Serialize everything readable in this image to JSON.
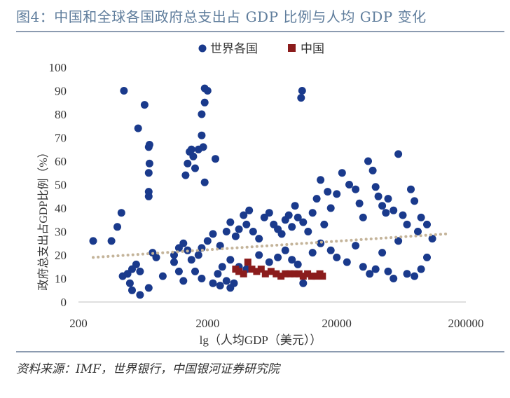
{
  "figure": {
    "title": "图4：中国和全球各国政府总支出占 GDP 比例与人均 GDP 变化",
    "source": "资料来源：IMF，世界银行，中国银河证券研究院"
  },
  "colors": {
    "world": "#1a3a8c",
    "china": "#8b1c1c",
    "trend": "#c4b49a",
    "axis": "#bfbfbf",
    "title": "#5f7d9c"
  },
  "chart_data": {
    "type": "scatter",
    "title": "",
    "xlabel": "lg（人均GDP（美元））",
    "ylabel": "政府总支出占GDP比例（%）",
    "x_scale": "log10",
    "xlim": [
      200,
      200000
    ],
    "ylim": [
      0,
      100
    ],
    "xticks": [
      200,
      2000,
      20000,
      200000
    ],
    "xtick_labels": [
      "200",
      "2000",
      "20000",
      "200000"
    ],
    "yticks": [
      0,
      10,
      20,
      30,
      40,
      50,
      60,
      70,
      80,
      90,
      100
    ],
    "legend": {
      "position": "top-center",
      "entries": [
        "世界各国",
        "中国"
      ]
    },
    "series": [
      {
        "name": "世界各国",
        "marker": "circle",
        "points": [
          [
            450,
            90
          ],
          [
            650,
            84
          ],
          [
            580,
            74
          ],
          [
            710,
            67
          ],
          [
            700,
            66
          ],
          [
            710,
            59
          ],
          [
            700,
            55
          ],
          [
            700,
            47
          ],
          [
            700,
            45
          ],
          [
            360,
            26
          ],
          [
            400,
            32
          ],
          [
            430,
            38
          ],
          [
            1900,
            91
          ],
          [
            2000,
            90
          ],
          [
            1900,
            85
          ],
          [
            1800,
            80
          ],
          [
            1800,
            71
          ],
          [
            1850,
            66
          ],
          [
            1700,
            65
          ],
          [
            1500,
            65
          ],
          [
            1450,
            64
          ],
          [
            1550,
            62
          ],
          [
            1400,
            59
          ],
          [
            1600,
            57
          ],
          [
            1350,
            54
          ],
          [
            1900,
            51
          ],
          [
            2300,
            61
          ],
          [
            10800,
            90
          ],
          [
            10600,
            87
          ],
          [
            260,
            26
          ],
          [
            440,
            11
          ],
          [
            480,
            12
          ],
          [
            520,
            14
          ],
          [
            560,
            16
          ],
          [
            600,
            13
          ],
          [
            500,
            8
          ],
          [
            520,
            5
          ],
          [
            600,
            3
          ],
          [
            700,
            6
          ],
          [
            900,
            11
          ],
          [
            800,
            19
          ],
          [
            750,
            21
          ],
          [
            1100,
            20
          ],
          [
            1200,
            23
          ],
          [
            1300,
            25
          ],
          [
            1400,
            22
          ],
          [
            1100,
            17
          ],
          [
            1200,
            13
          ],
          [
            1500,
            18
          ],
          [
            1700,
            20
          ],
          [
            1800,
            23
          ],
          [
            2000,
            26
          ],
          [
            2200,
            29
          ],
          [
            2500,
            24
          ],
          [
            2800,
            30
          ],
          [
            3000,
            34
          ],
          [
            3300,
            28
          ],
          [
            3500,
            31
          ],
          [
            3800,
            37
          ],
          [
            4000,
            33
          ],
          [
            4200,
            39
          ],
          [
            4500,
            30
          ],
          [
            5000,
            27
          ],
          [
            5500,
            36
          ],
          [
            6000,
            38
          ],
          [
            6500,
            33
          ],
          [
            7000,
            31
          ],
          [
            7500,
            29
          ],
          [
            8000,
            35
          ],
          [
            8500,
            37
          ],
          [
            9000,
            32
          ],
          [
            9500,
            41
          ],
          [
            10000,
            36
          ],
          [
            11000,
            34
          ],
          [
            12000,
            30
          ],
          [
            13000,
            38
          ],
          [
            14000,
            44
          ],
          [
            15000,
            52
          ],
          [
            16000,
            33
          ],
          [
            17000,
            47
          ],
          [
            18000,
            40
          ],
          [
            20000,
            46
          ],
          [
            22000,
            55
          ],
          [
            25000,
            50
          ],
          [
            28000,
            48
          ],
          [
            30000,
            42
          ],
          [
            32000,
            36
          ],
          [
            35000,
            60
          ],
          [
            38000,
            56
          ],
          [
            40000,
            49
          ],
          [
            42000,
            45
          ],
          [
            45000,
            41
          ],
          [
            48000,
            38
          ],
          [
            50000,
            44
          ],
          [
            55000,
            39
          ],
          [
            60000,
            63
          ],
          [
            65000,
            37
          ],
          [
            70000,
            33
          ],
          [
            75000,
            48
          ],
          [
            80000,
            43
          ],
          [
            85000,
            30
          ],
          [
            90000,
            36
          ],
          [
            100000,
            33
          ],
          [
            110000,
            27
          ],
          [
            3000,
            18
          ],
          [
            3500,
            15
          ],
          [
            4000,
            14
          ],
          [
            5000,
            20
          ],
          [
            6000,
            17
          ],
          [
            7000,
            19
          ],
          [
            8000,
            22
          ],
          [
            9000,
            18
          ],
          [
            10000,
            16
          ],
          [
            11000,
            8
          ],
          [
            13000,
            21
          ],
          [
            15000,
            25
          ],
          [
            18000,
            22
          ],
          [
            20000,
            19
          ],
          [
            24000,
            17
          ],
          [
            28000,
            24
          ],
          [
            32000,
            15
          ],
          [
            36000,
            12
          ],
          [
            40000,
            14
          ],
          [
            45000,
            21
          ],
          [
            50000,
            13
          ],
          [
            55000,
            10
          ],
          [
            60000,
            26
          ],
          [
            70000,
            12
          ],
          [
            80000,
            11
          ],
          [
            90000,
            14
          ],
          [
            100000,
            19
          ],
          [
            2200,
            8
          ],
          [
            2500,
            7
          ],
          [
            2800,
            9
          ],
          [
            3000,
            6
          ],
          [
            3200,
            8
          ],
          [
            2400,
            12
          ],
          [
            2600,
            15
          ],
          [
            1800,
            10
          ],
          [
            1600,
            13
          ],
          [
            1300,
            9
          ]
        ]
      },
      {
        "name": "中国",
        "marker": "square",
        "points": [
          [
            3300,
            14
          ],
          [
            3500,
            13
          ],
          [
            3800,
            12
          ],
          [
            4100,
            17
          ],
          [
            4400,
            14
          ],
          [
            4800,
            13
          ],
          [
            5200,
            14
          ],
          [
            5600,
            12
          ],
          [
            6200,
            13
          ],
          [
            6800,
            12
          ],
          [
            7400,
            11
          ],
          [
            8000,
            12
          ],
          [
            8700,
            12
          ],
          [
            9400,
            12
          ],
          [
            10200,
            12
          ],
          [
            11000,
            11
          ],
          [
            11900,
            12
          ],
          [
            12800,
            11
          ],
          [
            13800,
            11
          ],
          [
            14800,
            12
          ],
          [
            15500,
            11
          ]
        ]
      },
      {
        "name": "trend",
        "marker": "dotted-line",
        "points": [
          [
            260,
            19
          ],
          [
            140000,
            29
          ]
        ]
      }
    ]
  }
}
